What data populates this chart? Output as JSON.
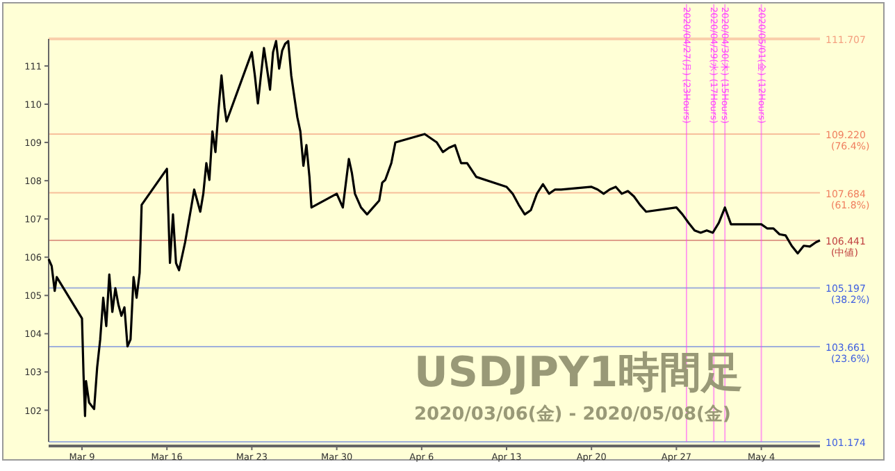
{
  "chart_data": {
    "type": "line",
    "title": "USDJPY1時間足",
    "subtitle": "2020/03/06(金) - 2020/05/08(金)",
    "x": [
      "2020-03-06T06:00",
      "2020-03-06T12:00",
      "2020-03-06T18:00",
      "2020-03-06T22:00",
      "2020-03-09T00:00",
      "2020-03-09T03:00",
      "2020-03-09T06:00",
      "2020-03-09T08:00",
      "2020-03-09T14:00",
      "2020-03-10T00:00",
      "2020-03-10T06:00",
      "2020-03-10T12:00",
      "2020-03-10T18:00",
      "2020-03-11T00:00",
      "2020-03-11T06:00",
      "2020-03-11T12:00",
      "2020-03-11T18:00",
      "2020-03-12T00:00",
      "2020-03-12T06:00",
      "2020-03-12T12:00",
      "2020-03-12T18:00",
      "2020-03-13T00:00",
      "2020-03-13T06:00",
      "2020-03-13T12:00",
      "2020-03-13T18:00",
      "2020-03-13T22:00",
      "2020-03-16T00:00",
      "2020-03-16T06:00",
      "2020-03-16T12:00",
      "2020-03-16T18:00",
      "2020-03-17T00:00",
      "2020-03-17T12:00",
      "2020-03-18T00:00",
      "2020-03-18T06:00",
      "2020-03-18T18:00",
      "2020-03-19T00:00",
      "2020-03-19T06:00",
      "2020-03-19T12:00",
      "2020-03-19T18:00",
      "2020-03-20T00:00",
      "2020-03-20T06:00",
      "2020-03-20T12:00",
      "2020-03-20T18:00",
      "2020-03-20T22:00",
      "2020-03-23T00:00",
      "2020-03-23T06:00",
      "2020-03-23T12:00",
      "2020-03-23T18:00",
      "2020-03-24T00:00",
      "2020-03-24T06:00",
      "2020-03-24T12:00",
      "2020-03-24T18:00",
      "2020-03-25T00:00",
      "2020-03-25T06:00",
      "2020-03-25T12:00",
      "2020-03-25T18:00",
      "2020-03-26T00:00",
      "2020-03-26T06:00",
      "2020-03-26T12:00",
      "2020-03-26T18:00",
      "2020-03-27T00:00",
      "2020-03-27T06:00",
      "2020-03-27T12:00",
      "2020-03-27T18:00",
      "2020-03-27T22:00",
      "2020-03-30T00:00",
      "2020-03-30T12:00",
      "2020-03-31T00:00",
      "2020-03-31T06:00",
      "2020-03-31T12:00",
      "2020-04-01T00:00",
      "2020-04-01T12:00",
      "2020-04-02T00:00",
      "2020-04-02T12:00",
      "2020-04-02T18:00",
      "2020-04-03T00:00",
      "2020-04-03T12:00",
      "2020-04-03T20:00",
      "2020-04-06T06:00",
      "2020-04-06T18:00",
      "2020-04-07T06:00",
      "2020-04-07T18:00",
      "2020-04-08T06:00",
      "2020-04-08T18:00",
      "2020-04-09T06:00",
      "2020-04-09T18:00",
      "2020-04-10T12:00",
      "2020-04-13T00:00",
      "2020-04-13T12:00",
      "2020-04-14T00:00",
      "2020-04-14T12:00",
      "2020-04-15T00:00",
      "2020-04-15T12:00",
      "2020-04-16T00:00",
      "2020-04-16T12:00",
      "2020-04-17T00:00",
      "2020-04-17T12:00",
      "2020-04-20T00:00",
      "2020-04-20T12:00",
      "2020-04-21T00:00",
      "2020-04-21T12:00",
      "2020-04-22T00:00",
      "2020-04-22T12:00",
      "2020-04-23T00:00",
      "2020-04-23T12:00",
      "2020-04-24T00:00",
      "2020-04-24T12:00",
      "2020-04-27T00:00",
      "2020-04-27T12:00",
      "2020-04-28T00:00",
      "2020-04-28T12:00",
      "2020-04-29T00:00",
      "2020-04-29T12:00",
      "2020-04-30T00:00",
      "2020-04-30T12:00",
      "2020-05-01T00:00",
      "2020-05-01T12:00",
      "2020-05-04T00:00",
      "2020-05-04T12:00",
      "2020-05-05T00:00",
      "2020-05-05T12:00",
      "2020-05-06T00:00",
      "2020-05-06T12:00",
      "2020-05-07T00:00",
      "2020-05-07T12:00",
      "2020-05-08T00:00",
      "2020-05-08T12:00",
      "2020-05-08T20:00"
    ],
    "series": [
      {
        "color": "#000000",
        "values": [
          105.95,
          105.77,
          105.12,
          105.48,
          104.4,
          102.94,
          101.85,
          102.76,
          102.2,
          102.03,
          103.12,
          103.85,
          104.94,
          104.2,
          105.55,
          104.57,
          105.19,
          104.76,
          104.47,
          104.69,
          103.67,
          103.85,
          105.48,
          104.94,
          105.59,
          107.37,
          108.31,
          105.85,
          107.12,
          105.85,
          105.66,
          106.39,
          107.3,
          107.77,
          107.19,
          107.66,
          108.46,
          108.02,
          109.29,
          108.75,
          109.84,
          110.75,
          109.91,
          109.55,
          111.36,
          110.75,
          110.02,
          110.75,
          111.47,
          110.93,
          110.38,
          111.36,
          111.65,
          110.93,
          111.4,
          111.58,
          111.65,
          110.75,
          110.2,
          109.66,
          109.29,
          108.39,
          108.93,
          108.1,
          107.3,
          107.66,
          107.3,
          108.57,
          108.2,
          107.66,
          107.3,
          107.12,
          107.3,
          107.48,
          107.95,
          108.02,
          108.46,
          109.0,
          109.22,
          109.11,
          109.0,
          108.75,
          108.86,
          108.93,
          108.46,
          108.46,
          108.1,
          107.84,
          107.66,
          107.37,
          107.12,
          107.23,
          107.66,
          107.91,
          107.66,
          107.77,
          107.77,
          107.84,
          107.77,
          107.66,
          107.77,
          107.84,
          107.66,
          107.73,
          107.59,
          107.37,
          107.19,
          107.3,
          107.12,
          106.9,
          106.7,
          106.64,
          106.7,
          106.64,
          106.9,
          107.3,
          106.86,
          106.86,
          106.75,
          106.75,
          106.6,
          106.57,
          106.3,
          106.1,
          106.3,
          106.28,
          106.39,
          106.44
        ]
      }
    ],
    "ylim": [
      101.174,
      111.707
    ],
    "yticks": [
      102,
      103,
      104,
      105,
      106,
      107,
      108,
      109,
      110,
      111
    ],
    "xticks": [
      {
        "value": "2020-03-09",
        "label": "Mar 9"
      },
      {
        "value": "2020-03-16",
        "label": "Mar 16"
      },
      {
        "value": "2020-03-23",
        "label": "Mar 23"
      },
      {
        "value": "2020-03-30",
        "label": "Mar 30"
      },
      {
        "value": "2020-04-06",
        "label": "Apr 6"
      },
      {
        "value": "2020-04-13",
        "label": "Apr 13"
      },
      {
        "value": "2020-04-20",
        "label": "Apr 20"
      },
      {
        "value": "2020-04-27",
        "label": "Apr 27"
      },
      {
        "value": "2020-05-04",
        "label": "May 4"
      }
    ],
    "ref_lines": [
      {
        "axis": "y",
        "value": 111.707,
        "label": "111.707",
        "color": "#f4a080"
      },
      {
        "axis": "y",
        "value": 109.22,
        "label": "109.220 (76.4%)",
        "color": "#f08060"
      },
      {
        "axis": "y",
        "value": 107.684,
        "label": "107.684 (61.8%)",
        "color": "#f08060"
      },
      {
        "axis": "y",
        "value": 106.441,
        "label": "106.441 (中値)",
        "color": "#c04040"
      },
      {
        "axis": "y",
        "value": 105.197,
        "label": "105.197 (38.2%)",
        "color": "#4060e0"
      },
      {
        "axis": "y",
        "value": 103.661,
        "label": "103.661 (23.6%)",
        "color": "#4060e0"
      },
      {
        "axis": "y",
        "value": 101.174,
        "label": "101.174",
        "color": "#4060e0"
      },
      {
        "axis": "x",
        "value": "2020-04-27T20:00",
        "label": "2020/04/27(月) (23Hours)",
        "color": "#ff40ff"
      },
      {
        "axis": "x",
        "value": "2020-04-30T02:00",
        "label": "2020/04/29(水) (17Hours)",
        "color": "#ff40ff"
      },
      {
        "axis": "x",
        "value": "2020-05-01T00:00",
        "label": "2020/04/30(木) (15Hours)",
        "color": "#ff40ff"
      },
      {
        "axis": "x",
        "value": "2020-05-04T00:00",
        "label": "2020/05/01(金) (12Hours)",
        "color": "#ff40ff"
      }
    ],
    "xlim": [
      "2020-03-06T06:00",
      "2020-05-08T20:00"
    ],
    "grid": false
  }
}
